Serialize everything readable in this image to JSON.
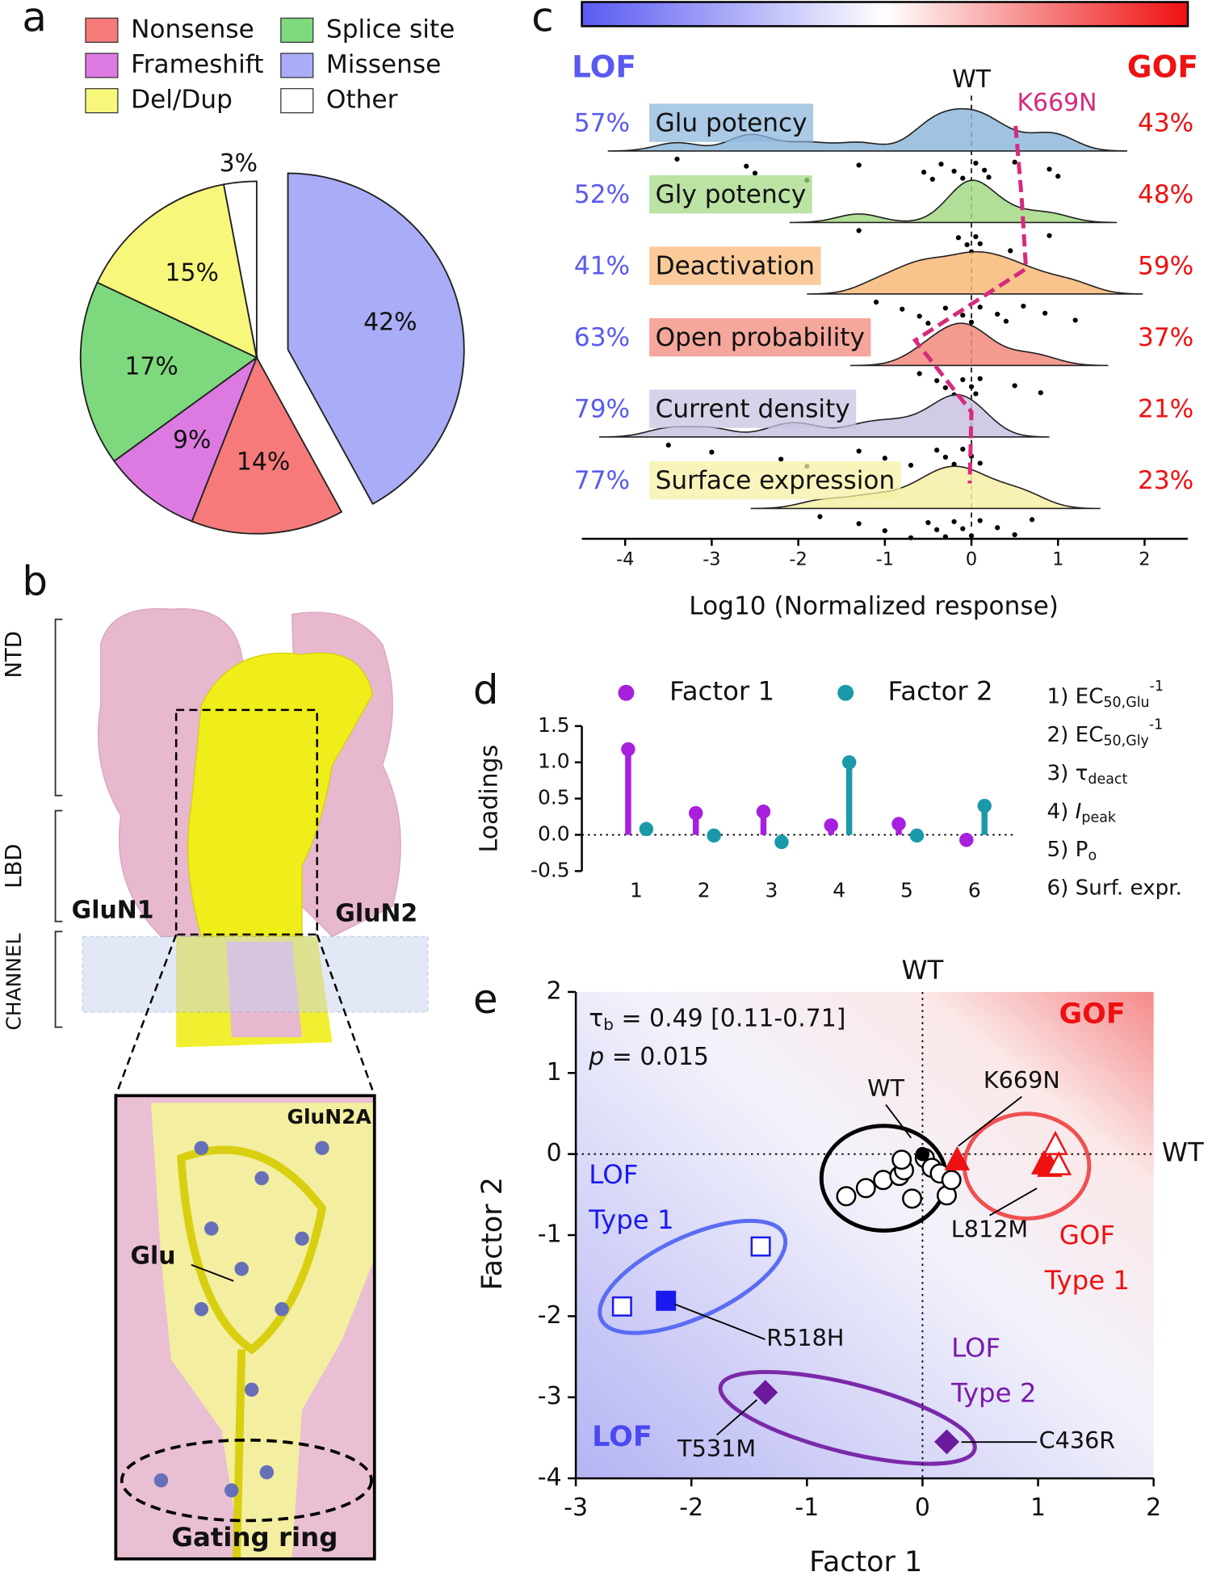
{
  "panel_labels": [
    "a",
    "b",
    "c",
    "d",
    "e"
  ],
  "structure": {
    "domains": [
      "NTD",
      "LBD",
      "CHANNEL"
    ],
    "subunits": [
      "GluN1",
      "GluN2"
    ],
    "inset_title": "GluN2A",
    "ligand": "Glu",
    "ring": "Gating ring"
  },
  "chart_data": [
    {
      "type": "pie",
      "categories": [
        "Missense",
        "Nonsense",
        "Frameshift",
        "Splice site",
        "Del/Dup",
        "Other"
      ],
      "values": [
        42,
        14,
        9,
        17,
        15,
        3
      ],
      "value_labels": [
        "42%",
        "14%",
        "9%",
        "17%",
        "15%",
        "3%"
      ],
      "colors": [
        "#a9acf6",
        "#f67a7a",
        "#dd7ae2",
        "#7ed97e",
        "#f7f77c",
        "#ffffff"
      ],
      "exploded": "Missense"
    },
    {
      "type": "ridgeline",
      "left_label": "LOF",
      "right_label": "GOF",
      "reference_label": "WT",
      "xlabel": "Log10 (Normalized response)",
      "xlim": [
        -4.5,
        2.5
      ],
      "xticks": [
        -4,
        -3,
        -2,
        -1,
        0,
        1,
        2
      ],
      "rows": [
        {
          "name": "Glu potency",
          "color": "#8fb8dc",
          "lof": "57%",
          "gof": "43%",
          "points": [
            -3.4,
            -2.6,
            -2.5,
            -1.9,
            -1.3,
            -0.55,
            -0.45,
            -0.35,
            -0.2,
            -0.1,
            0.05,
            0.15,
            0.2,
            0.5,
            0.9,
            1.0
          ]
        },
        {
          "name": "Gly potency",
          "color": "#a4d986",
          "lof": "52%",
          "gof": "48%",
          "points": [
            -1.3,
            -0.15,
            -0.05,
            0,
            0.05,
            0.1,
            0.45,
            0.9
          ]
        },
        {
          "name": "Deactivation",
          "color": "#f8b878",
          "lof": "41%",
          "gof": "59%",
          "points": [
            -1.1,
            -0.8,
            -0.6,
            -0.5,
            -0.3,
            -0.1,
            0,
            0.1,
            0.3,
            0.4,
            0.6,
            0.85,
            1.2
          ]
        },
        {
          "name": "Open probability",
          "color": "#f1897b",
          "lof": "63%",
          "gof": "37%",
          "points": [
            -0.6,
            -0.4,
            -0.3,
            -0.2,
            -0.1,
            0,
            0.05,
            0.1,
            0.5,
            0.8
          ]
        },
        {
          "name": "Current density",
          "color": "#c9c2e2",
          "lof": "79%",
          "gof": "21%",
          "points": [
            -3.5,
            -3,
            -2.2,
            -1.9,
            -1.3,
            -1.0,
            -0.7,
            -0.4,
            -0.3,
            -0.2,
            -0.1,
            0,
            0.1
          ]
        },
        {
          "name": "Surface expression",
          "color": "#f6f0a6",
          "lof": "77%",
          "gof": "23%",
          "points": [
            -1.75,
            -1.3,
            -1.0,
            -0.7,
            -0.5,
            -0.4,
            -0.3,
            -0.2,
            -0.1,
            0,
            0.1,
            0.3,
            0.5,
            0.7
          ]
        }
      ],
      "trace": {
        "name": "K669N",
        "color": "#d62a7c",
        "values": [
          0.51,
          0.58,
          0.63,
          -0.65,
          0,
          -0.02
        ]
      }
    },
    {
      "type": "lollipop",
      "ylabel": "Loadings",
      "categories": [
        "1",
        "2",
        "3",
        "4",
        "5",
        "6"
      ],
      "series": [
        {
          "name": "Factor 1",
          "color": "#a620de",
          "values": [
            1.18,
            0.3,
            0.32,
            0.13,
            0.15,
            -0.07
          ]
        },
        {
          "name": "Factor 2",
          "color": "#1a9aa8",
          "values": [
            0.08,
            -0.01,
            -0.1,
            1.0,
            -0.01,
            0.4
          ]
        }
      ],
      "ylim": [
        -0.5,
        1.5
      ],
      "yticks": [
        {
          "value": -0.5,
          "label": "-0.5"
        },
        {
          "value": 0,
          "label": "0.0"
        },
        {
          "value": 0.5,
          "label": "0.5"
        },
        {
          "value": 1,
          "label": "1.0"
        },
        {
          "value": 1.5,
          "label": "1.5"
        }
      ],
      "zero_line": true,
      "notes": [
        {
          "prefix": "1) EC",
          "sub": "50,Glu",
          "sup": "-1"
        },
        {
          "prefix": "2) EC",
          "sub": "50,Gly",
          "sup": "-1"
        },
        {
          "prefix": "3) τ",
          "sub": "deact"
        },
        {
          "prefix": "4) ",
          "italic": "I",
          "sub": "peak"
        },
        {
          "prefix": "5) P",
          "sub": "o"
        },
        {
          "prefix": "6) Surf. expr."
        }
      ]
    },
    {
      "type": "scatter",
      "xlabel": "Factor 1",
      "ylabel": "Factor 2",
      "xlim": [
        -3,
        2
      ],
      "ylim": [
        -4,
        2
      ],
      "xticks": [
        -3,
        -2,
        -1,
        0,
        1,
        2
      ],
      "yticks": [
        -4,
        -3,
        -2,
        -1,
        0,
        1,
        2
      ],
      "series": [
        {
          "marker": "circle",
          "color": "#000000",
          "filled": false,
          "x": [
            -0.66,
            -0.49,
            -0.34,
            -0.2,
            -0.16,
            -0.09,
            0.02,
            0.08,
            0.15,
            0.21,
            0.25,
            -0.18
          ],
          "y": [
            -0.52,
            -0.42,
            -0.32,
            -0.27,
            -0.2,
            -0.55,
            -0.05,
            -0.17,
            -0.24,
            -0.51,
            -0.32,
            -0.07
          ]
        },
        {
          "marker": "circle",
          "color": "#000000",
          "filled": true,
          "x": [
            0
          ],
          "y": [
            0
          ]
        },
        {
          "marker": "triangle",
          "color": "#ee1111",
          "filled": true,
          "x": [
            0.3,
            1.05,
            1.1
          ],
          "y": [
            -0.09,
            -0.14,
            -0.17
          ]
        },
        {
          "marker": "triangle",
          "color": "#ee1111",
          "filled": false,
          "x": [
            1.15,
            1.18
          ],
          "y": [
            0.1,
            -0.15
          ]
        },
        {
          "marker": "square",
          "color": "#1a1aee",
          "filled": false,
          "x": [
            -1.4,
            -2.6
          ],
          "y": [
            -1.14,
            -1.88
          ]
        },
        {
          "marker": "square",
          "color": "#1a1aee",
          "filled": true,
          "x": [
            -2.22
          ],
          "y": [
            -1.81
          ]
        },
        {
          "marker": "diamond",
          "color": "#6a1a9a",
          "filled": true,
          "x": [
            -1.36,
            0.21
          ],
          "y": [
            -2.94,
            -3.55
          ]
        }
      ],
      "reference_labels": [
        "WT",
        "WT"
      ],
      "corner_labels": [
        "GOF",
        "LOF"
      ],
      "group_labels": [
        [
          "LOF",
          "Type 1"
        ],
        [
          "LOF",
          "Type 2"
        ],
        [
          "GOF",
          "Type 1"
        ]
      ],
      "point_labels": [
        "WT",
        "K669N",
        "L812M",
        "R518H",
        "T531M",
        "C436R"
      ],
      "stats": {
        "tau": "τ",
        "tau_sub": "b",
        "tau_text": " = 0.49 [0.11-0.71]",
        "p": "p",
        "p_text": " = 0.015"
      }
    }
  ]
}
